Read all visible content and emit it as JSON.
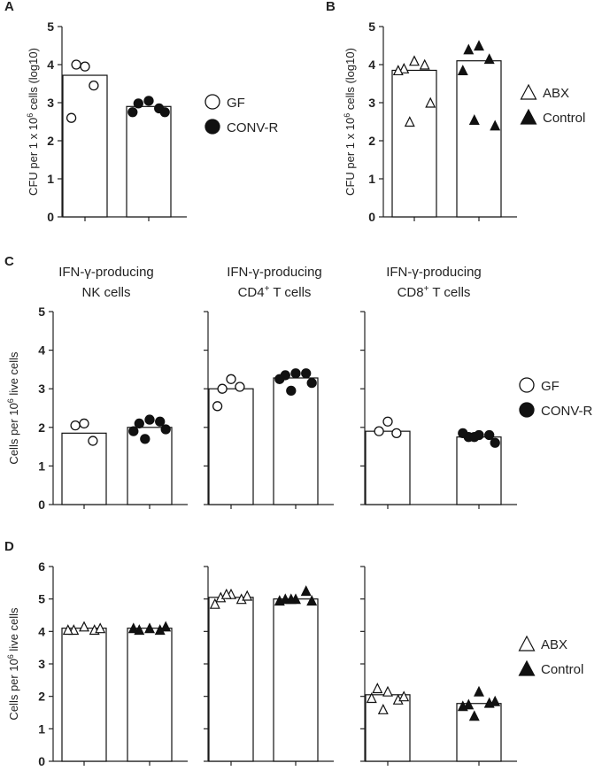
{
  "legends": {
    "gf_conv": [
      {
        "label": "GF",
        "marker": "circle-open"
      },
      {
        "label": "CONV-R",
        "marker": "circle-filled"
      }
    ],
    "abx_ctrl": [
      {
        "label": "ABX",
        "marker": "triangle-open"
      },
      {
        "label": "Control",
        "marker": "triangle-filled"
      }
    ]
  },
  "chart_data": [
    {
      "panel": "A",
      "type": "bar",
      "title": "",
      "ylabel": "CFU per 1 x 10^6 cells (log10)",
      "ylim": [
        0,
        5
      ],
      "yticks": [
        0,
        1,
        2,
        3,
        4,
        5
      ],
      "categories": [
        "GF",
        "CONV-R"
      ],
      "series": [
        {
          "name": "GF",
          "marker": "circle-open",
          "mean": 3.72,
          "points": [
            3.95,
            4.0,
            3.45,
            2.6
          ]
        },
        {
          "name": "CONV-R",
          "marker": "circle-filled",
          "mean": 2.9,
          "points": [
            3.05,
            2.98,
            2.85,
            2.75,
            2.75
          ]
        }
      ],
      "legend": "gf_conv"
    },
    {
      "panel": "B",
      "type": "bar",
      "title": "",
      "ylabel": "CFU per 1 x 10^6 cells (log10)",
      "ylim": [
        0,
        5
      ],
      "yticks": [
        0,
        1,
        2,
        3,
        4,
        5
      ],
      "categories": [
        "ABX",
        "Control"
      ],
      "series": [
        {
          "name": "ABX",
          "marker": "triangle-open",
          "mean": 3.85,
          "points": [
            4.1,
            3.9,
            4.0,
            3.85,
            3.0,
            2.5
          ]
        },
        {
          "name": "Control",
          "marker": "triangle-filled",
          "mean": 4.1,
          "points": [
            4.5,
            4.4,
            4.15,
            3.85,
            2.4,
            2.55
          ]
        }
      ],
      "legend": "abx_ctrl"
    },
    {
      "panel": "C",
      "type": "bar",
      "title": "IFN-γ-producing NK cells",
      "ylabel": "Cells per 10^6 live cells",
      "ylim": [
        0,
        5
      ],
      "yticks": [
        0,
        1,
        2,
        3,
        4,
        5
      ],
      "categories": [
        "GF",
        "CONV-R"
      ],
      "series": [
        {
          "name": "GF",
          "marker": "circle-open",
          "mean": 1.85,
          "points": [
            2.1,
            2.05,
            1.65
          ]
        },
        {
          "name": "CONV-R",
          "marker": "circle-filled",
          "mean": 2.0,
          "points": [
            2.2,
            2.1,
            2.15,
            1.9,
            1.95,
            1.7
          ]
        }
      ]
    },
    {
      "panel": "C",
      "type": "bar",
      "title": "IFN-γ-producing CD4+ T cells",
      "ylabel": "",
      "ylim": [
        0,
        5
      ],
      "categories": [
        "GF",
        "CONV-R"
      ],
      "series": [
        {
          "name": "GF",
          "marker": "circle-open",
          "mean": 3.0,
          "points": [
            3.25,
            3.0,
            3.05,
            2.55
          ]
        },
        {
          "name": "CONV-R",
          "marker": "circle-filled",
          "mean": 3.28,
          "points": [
            3.4,
            3.35,
            3.4,
            3.25,
            3.15,
            2.95
          ]
        }
      ]
    },
    {
      "panel": "C",
      "type": "bar",
      "title": "IFN-γ-producing CD8+ T cells",
      "ylabel": "",
      "ylim": [
        0,
        5
      ],
      "categories": [
        "GF",
        "CONV-R"
      ],
      "series": [
        {
          "name": "GF",
          "marker": "circle-open",
          "mean": 1.9,
          "points": [
            2.15,
            1.9,
            1.85
          ]
        },
        {
          "name": "CONV-R",
          "marker": "circle-filled",
          "mean": 1.75,
          "points": [
            1.8,
            1.75,
            1.8,
            1.85,
            1.6,
            1.75
          ]
        }
      ],
      "legend": "gf_conv"
    },
    {
      "panel": "D",
      "type": "bar",
      "title": "",
      "ylabel": "Cells per 10^6 live cells",
      "ylim": [
        0,
        6
      ],
      "yticks": [
        0,
        1,
        2,
        3,
        4,
        5,
        6
      ],
      "categories": [
        "ABX",
        "Control"
      ],
      "series": [
        {
          "name": "ABX",
          "marker": "triangle-open",
          "mean": 4.1,
          "points": [
            4.15,
            4.05,
            4.05,
            4.05,
            4.1
          ]
        },
        {
          "name": "Control",
          "marker": "triangle-filled",
          "mean": 4.1,
          "points": [
            4.1,
            4.05,
            4.05,
            4.1,
            4.15
          ]
        }
      ]
    },
    {
      "panel": "D",
      "type": "bar",
      "title": "",
      "ylabel": "",
      "ylim": [
        0,
        6
      ],
      "categories": [
        "ABX",
        "Control"
      ],
      "series": [
        {
          "name": "ABX",
          "marker": "triangle-open",
          "mean": 5.05,
          "points": [
            5.15,
            5.05,
            5.0,
            4.85,
            5.1,
            5.15
          ]
        },
        {
          "name": "Control",
          "marker": "triangle-filled",
          "mean": 5.0,
          "points": [
            5.0,
            5.0,
            5.25,
            4.95,
            4.95,
            5.0
          ]
        }
      ]
    },
    {
      "panel": "D",
      "type": "bar",
      "title": "",
      "ylabel": "",
      "ylim": [
        0,
        6
      ],
      "categories": [
        "ABX",
        "Control"
      ],
      "series": [
        {
          "name": "ABX",
          "marker": "triangle-open",
          "mean": 2.05,
          "points": [
            2.15,
            2.25,
            1.9,
            1.95,
            2.0,
            1.6
          ]
        },
        {
          "name": "Control",
          "marker": "triangle-filled",
          "mean": 1.78,
          "points": [
            2.15,
            1.75,
            1.8,
            1.7,
            1.85,
            1.4
          ]
        }
      ],
      "legend": "abx_ctrl"
    }
  ]
}
